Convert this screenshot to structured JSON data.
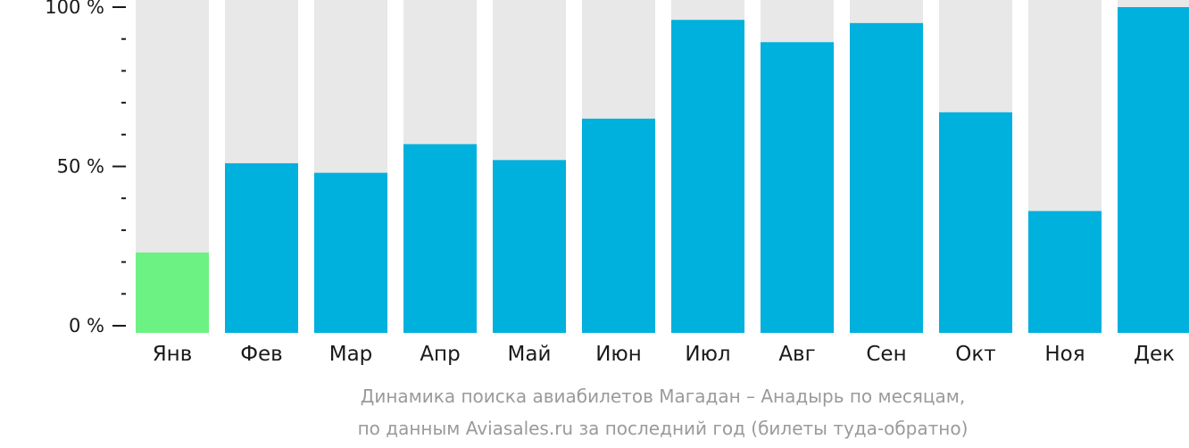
{
  "chart_data": {
    "type": "bar",
    "categories": [
      "Янв",
      "Фев",
      "Мар",
      "Апр",
      "Май",
      "Июн",
      "Июл",
      "Авг",
      "Сен",
      "Окт",
      "Ноя",
      "Дек"
    ],
    "values": [
      23,
      51,
      48,
      57,
      52,
      65,
      96,
      89,
      95,
      67,
      36,
      100
    ],
    "ylim": [
      0,
      100
    ],
    "yticks": [
      {
        "value": 0,
        "label": "0 %"
      },
      {
        "value": 50,
        "label": "50 %"
      },
      {
        "value": 100,
        "label": "100 %"
      }
    ],
    "minor_tick_step": 10,
    "grid": false,
    "colors": {
      "bar": "#00b0dd",
      "highlight_bar": "#6cf283",
      "background_bar": "#e8e8e8",
      "axis": "#1a1a1a"
    },
    "highlight_index": 0
  },
  "caption": {
    "line1": "Динамика поиска авиабилетов Магадан – Анадырь по месяцам,",
    "line2": "по данным Aviasales.ru за последний год (билеты туда-обратно)"
  }
}
